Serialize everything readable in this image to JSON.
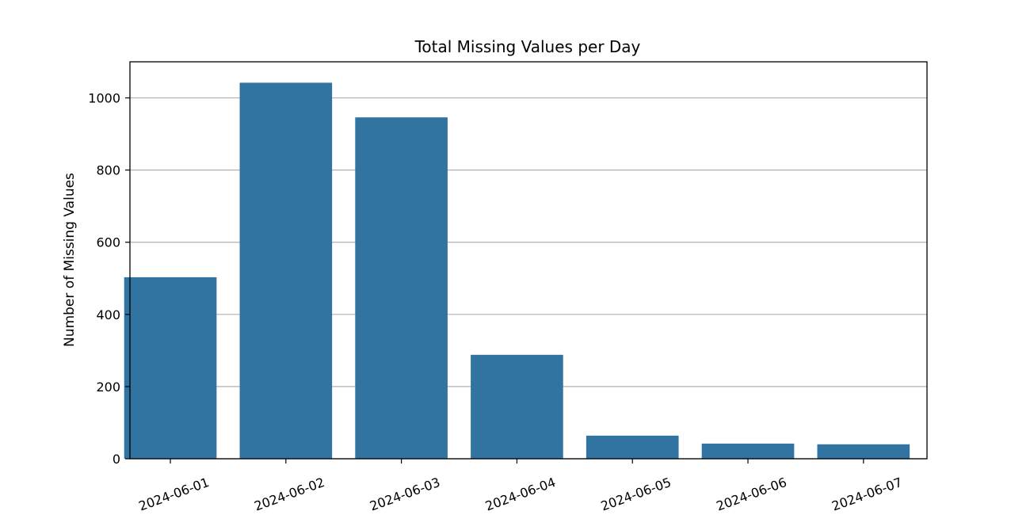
{
  "chart_data": {
    "type": "bar",
    "title": "Total Missing Values per Day",
    "xlabel": "",
    "ylabel": "Number of Missing Values",
    "categories": [
      "2024-06-01",
      "2024-06-02",
      "2024-06-03",
      "2024-06-04",
      "2024-06-05",
      "2024-06-06",
      "2024-06-07"
    ],
    "values": [
      503,
      1042,
      946,
      288,
      64,
      42,
      40
    ],
    "ylim": [
      0,
      1100
    ],
    "yticks": [
      0,
      200,
      400,
      600,
      800,
      1000
    ],
    "grid": "y",
    "bar_color": "#3274a1",
    "legend": "none"
  }
}
